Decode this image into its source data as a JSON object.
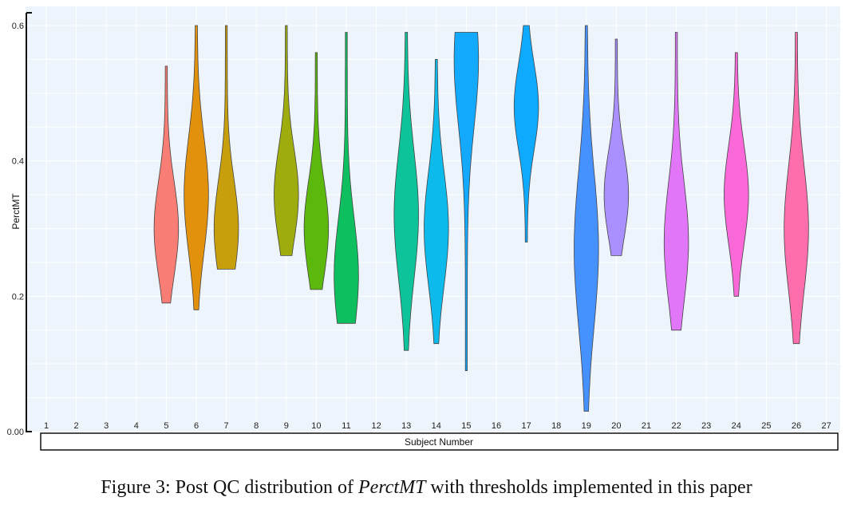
{
  "chart_data": {
    "type": "violin",
    "xlabel": "Subject Number",
    "ylabel": "PerctMT",
    "yticks": [
      "0.00",
      "0.2",
      "0.4",
      "0.6"
    ],
    "ylim": [
      0.0,
      0.6
    ],
    "categories": [
      "1",
      "2",
      "3",
      "4",
      "5",
      "6",
      "7",
      "8",
      "9",
      "10",
      "11",
      "12",
      "13",
      "14",
      "15",
      "16",
      "17",
      "18",
      "19",
      "20",
      "21",
      "22",
      "23",
      "24",
      "25",
      "26",
      "27"
    ],
    "grid": true,
    "series": [
      {
        "subject": "5",
        "color": "#f8766d",
        "min": 0.19,
        "max": 0.54,
        "mode": 0.3
      },
      {
        "subject": "6",
        "color": "#e08b00",
        "min": 0.18,
        "max": 0.6,
        "mode": 0.35
      },
      {
        "subject": "7",
        "color": "#c49a00",
        "min": 0.24,
        "max": 0.6,
        "mode": 0.3
      },
      {
        "subject": "9",
        "color": "#99a800",
        "min": 0.26,
        "max": 0.6,
        "mode": 0.35
      },
      {
        "subject": "10",
        "color": "#53b400",
        "min": 0.21,
        "max": 0.56,
        "mode": 0.3
      },
      {
        "subject": "11",
        "color": "#00bc56",
        "min": 0.16,
        "max": 0.59,
        "mode": 0.23
      },
      {
        "subject": "13",
        "color": "#00c094",
        "min": 0.12,
        "max": 0.59,
        "mode": 0.32
      },
      {
        "subject": "14",
        "color": "#00b6eb",
        "min": 0.13,
        "max": 0.55,
        "mode": 0.3
      },
      {
        "subject": "15",
        "color": "#06a4ff",
        "min": 0.09,
        "max": 0.59,
        "mode": 0.55
      },
      {
        "subject": "17",
        "color": "#00a5ff",
        "min": 0.28,
        "max": 0.6,
        "mode": 0.48
      },
      {
        "subject": "19",
        "color": "#3a8bff",
        "min": 0.03,
        "max": 0.6,
        "mode": 0.27
      },
      {
        "subject": "20",
        "color": "#a58aff",
        "min": 0.26,
        "max": 0.58,
        "mode": 0.35
      },
      {
        "subject": "22",
        "color": "#df70f8",
        "min": 0.15,
        "max": 0.59,
        "mode": 0.28
      },
      {
        "subject": "24",
        "color": "#fb61d7",
        "min": 0.2,
        "max": 0.56,
        "mode": 0.35
      },
      {
        "subject": "26",
        "color": "#ff66a8",
        "min": 0.13,
        "max": 0.59,
        "mode": 0.3
      }
    ]
  },
  "caption": {
    "prefix": "Figure 3: Post QC distribution of ",
    "variable": "PerctMT",
    "suffix": " with thresholds implemented in this paper"
  }
}
